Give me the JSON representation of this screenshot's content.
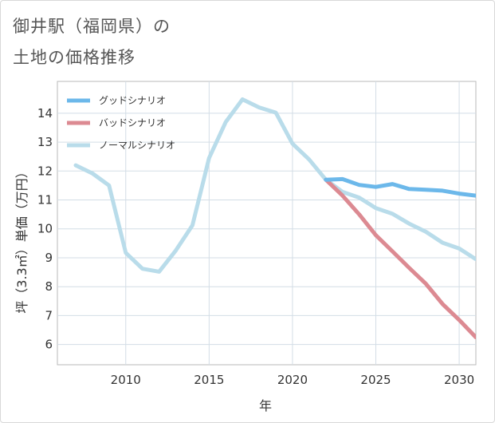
{
  "title_line1": "御井駅（福岡県）の",
  "title_line2": "土地の価格推移",
  "chart_data": {
    "type": "line",
    "xlabel": "年",
    "ylabel": "坪（3.3㎡）単価（万円）",
    "xlim": [
      2005.9,
      2031
    ],
    "ylim": [
      5.3,
      15.1
    ],
    "x_ticks": [
      2010,
      2015,
      2020,
      2025,
      2030
    ],
    "y_ticks": [
      6,
      7,
      8,
      9,
      10,
      11,
      12,
      13,
      14
    ],
    "grid": true,
    "legend_position": "top-left",
    "series": [
      {
        "name": "グッドシナリオ",
        "color": "#6cb8ea",
        "x": [
          2022,
          2023,
          2024,
          2025,
          2026,
          2027,
          2028,
          2029,
          2030,
          2031
        ],
        "y": [
          11.7,
          11.72,
          11.52,
          11.45,
          11.55,
          11.38,
          11.35,
          11.32,
          11.22,
          11.15
        ]
      },
      {
        "name": "バッドシナリオ",
        "color": "#dc8a92",
        "x": [
          2022,
          2023,
          2024,
          2025,
          2026,
          2027,
          2028,
          2029,
          2030,
          2031
        ],
        "y": [
          11.7,
          11.15,
          10.5,
          9.78,
          9.22,
          8.65,
          8.1,
          7.4,
          6.85,
          6.25
        ]
      },
      {
        "name": "ノーマルシナリオ",
        "color": "#b9dcea",
        "x": [
          2007,
          2008,
          2009,
          2010,
          2011,
          2012,
          2013,
          2014,
          2015,
          2016,
          2017,
          2018,
          2019,
          2020,
          2021,
          2022,
          2023,
          2024,
          2025,
          2026,
          2027,
          2028,
          2029,
          2030,
          2031
        ],
        "y": [
          12.2,
          11.92,
          11.5,
          9.17,
          8.62,
          8.52,
          9.25,
          10.12,
          12.45,
          13.7,
          14.48,
          14.2,
          14.02,
          12.95,
          12.4,
          11.7,
          11.28,
          11.08,
          10.72,
          10.52,
          10.18,
          9.9,
          9.52,
          9.32,
          8.95
        ]
      }
    ]
  }
}
